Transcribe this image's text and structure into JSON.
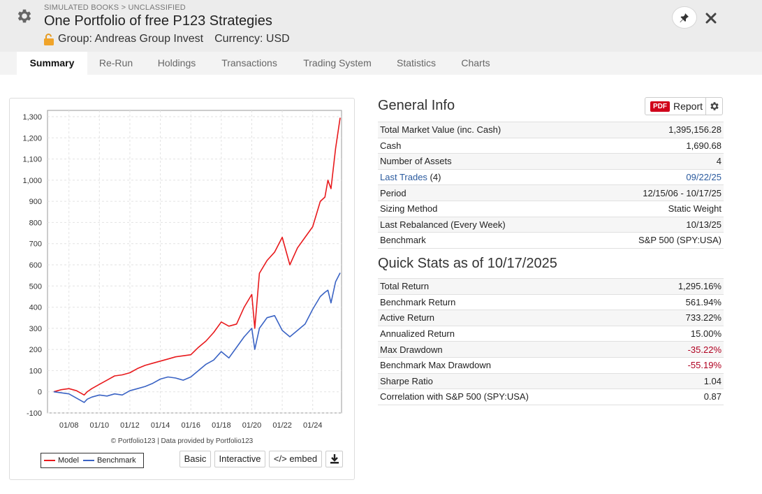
{
  "header": {
    "breadcrumb": "SIMULATED BOOKS > UNCLASSIFIED",
    "title": "One Portfolio of free P123 Strategies",
    "group": "Group: Andreas Group Invest",
    "currency": "Currency: USD"
  },
  "tabs": [
    "Summary",
    "Re-Run",
    "Holdings",
    "Transactions",
    "Trading System",
    "Statistics",
    "Charts"
  ],
  "active_tab": "Summary",
  "general_info": {
    "title": "General Info",
    "pdf_badge": "PDF",
    "report_label": "Report",
    "rows": [
      {
        "label": "Total Market Value (inc. Cash)",
        "value": "1,395,156.28"
      },
      {
        "label": "Cash",
        "value": "1,690.68"
      },
      {
        "label": "Number of Assets",
        "value": "4"
      },
      {
        "label": "Last Trades",
        "label_suffix": " (4)",
        "value": "09/22/25"
      },
      {
        "label": "Period",
        "value": "12/15/06 - 10/17/25"
      },
      {
        "label": "Sizing Method",
        "value": "Static Weight"
      },
      {
        "label": "Last Rebalanced (Every Week)",
        "value": "10/13/25"
      },
      {
        "label": "Benchmark",
        "value": "S&P 500 (SPY:USA)"
      }
    ]
  },
  "quick_stats": {
    "title": "Quick Stats as of 10/17/2025",
    "rows": [
      {
        "label": "Total Return",
        "value": "1,295.16%"
      },
      {
        "label": "Benchmark Return",
        "value": "561.94%"
      },
      {
        "label": "Active Return",
        "value": "733.22%"
      },
      {
        "label": "Annualized Return",
        "value": "15.00%"
      },
      {
        "label": "Max Drawdown",
        "value": "-35.22%"
      },
      {
        "label": "Benchmark Max Drawdown",
        "value": "-55.19%"
      },
      {
        "label": "Sharpe Ratio",
        "value": "1.04"
      },
      {
        "label": "Correlation with S&P 500 (SPY:USA)",
        "value": "0.87"
      }
    ]
  },
  "chart_footer": {
    "credit": "© Portfolio123 | Data provided by Portfolio123",
    "buttons": {
      "basic": "Basic",
      "interactive": "Interactive",
      "embed": "</> embed"
    }
  },
  "colors": {
    "model": "#e8191c",
    "benchmark": "#3a63c4",
    "negative": "#b00020",
    "link": "#2a5a9e"
  },
  "chart_data": {
    "type": "line",
    "xlabel": "",
    "ylabel": "",
    "ylim": [
      -100,
      1300
    ],
    "yticks": [
      "1,300",
      "1,200",
      "1,100",
      "1,000",
      "900",
      "800",
      "700",
      "600",
      "500",
      "400",
      "300",
      "200",
      "100",
      "0",
      "-100"
    ],
    "xticks": [
      "01/08",
      "01/10",
      "01/12",
      "01/14",
      "01/16",
      "01/18",
      "01/20",
      "01/22",
      "01/24"
    ],
    "x": [
      2007.0,
      2007.5,
      2008.0,
      2008.5,
      2009.0,
      2009.2,
      2009.5,
      2010.0,
      2010.5,
      2011.0,
      2011.5,
      2012.0,
      2012.5,
      2013.0,
      2013.5,
      2014.0,
      2014.5,
      2015.0,
      2015.5,
      2016.0,
      2016.5,
      2017.0,
      2017.5,
      2018.0,
      2018.5,
      2019.0,
      2019.5,
      2020.0,
      2020.2,
      2020.5,
      2021.0,
      2021.5,
      2022.0,
      2022.5,
      2023.0,
      2023.5,
      2024.0,
      2024.5,
      2024.8,
      2025.0,
      2025.2,
      2025.5,
      2025.8
    ],
    "series": [
      {
        "name": "Model",
        "values": [
          0,
          10,
          15,
          5,
          -15,
          0,
          15,
          35,
          55,
          75,
          80,
          90,
          110,
          125,
          135,
          145,
          155,
          165,
          170,
          175,
          210,
          240,
          280,
          330,
          310,
          320,
          400,
          460,
          300,
          560,
          620,
          660,
          730,
          600,
          680,
          730,
          780,
          900,
          920,
          1000,
          960,
          1150,
          1295
        ]
      },
      {
        "name": "Benchmark",
        "values": [
          0,
          -5,
          -10,
          -30,
          -50,
          -35,
          -25,
          -15,
          -20,
          -10,
          -15,
          5,
          15,
          25,
          40,
          60,
          70,
          65,
          55,
          70,
          100,
          130,
          150,
          190,
          160,
          210,
          260,
          300,
          200,
          300,
          350,
          360,
          290,
          260,
          290,
          320,
          390,
          450,
          470,
          480,
          420,
          520,
          562
        ]
      }
    ],
    "legend": "bottom-left",
    "grid": true
  }
}
